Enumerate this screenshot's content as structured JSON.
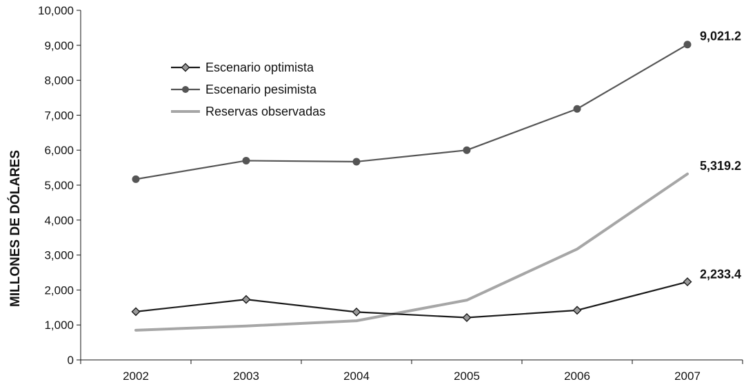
{
  "chart_data": {
    "type": "line",
    "title": "",
    "xlabel": "",
    "ylabel": "MILLONES DE DÓLARES",
    "categories": [
      "2002",
      "2003",
      "2004",
      "2005",
      "2006",
      "2007"
    ],
    "ylim": [
      0,
      10000
    ],
    "yticks": [
      0,
      1000,
      2000,
      3000,
      4000,
      5000,
      6000,
      7000,
      8000,
      9000,
      10000
    ],
    "ytick_labels": [
      "0",
      "1,000",
      "2,000",
      "3,000",
      "4,000",
      "5,000",
      "6,000",
      "7,000",
      "8,000",
      "9,000",
      "10,000"
    ],
    "grid": false,
    "legend_position": "top-left",
    "series": [
      {
        "name": "Escenario optimista",
        "values": [
          1380,
          1730,
          1370,
          1210,
          1420,
          2233.4
        ],
        "color": "#1a1a1a",
        "marker": "diamond",
        "end_label": "2,233.4"
      },
      {
        "name": "Escenario pesimista",
        "values": [
          5170,
          5700,
          5670,
          6000,
          7180,
          9021.2
        ],
        "color": "#555555",
        "marker": "circle",
        "end_label": "9,021.2"
      },
      {
        "name": "Reservas observadas",
        "values": [
          850,
          970,
          1120,
          1710,
          3170,
          5319.2
        ],
        "color": "#a6a6a6",
        "marker": "none",
        "end_label": "5,319.2"
      }
    ]
  }
}
